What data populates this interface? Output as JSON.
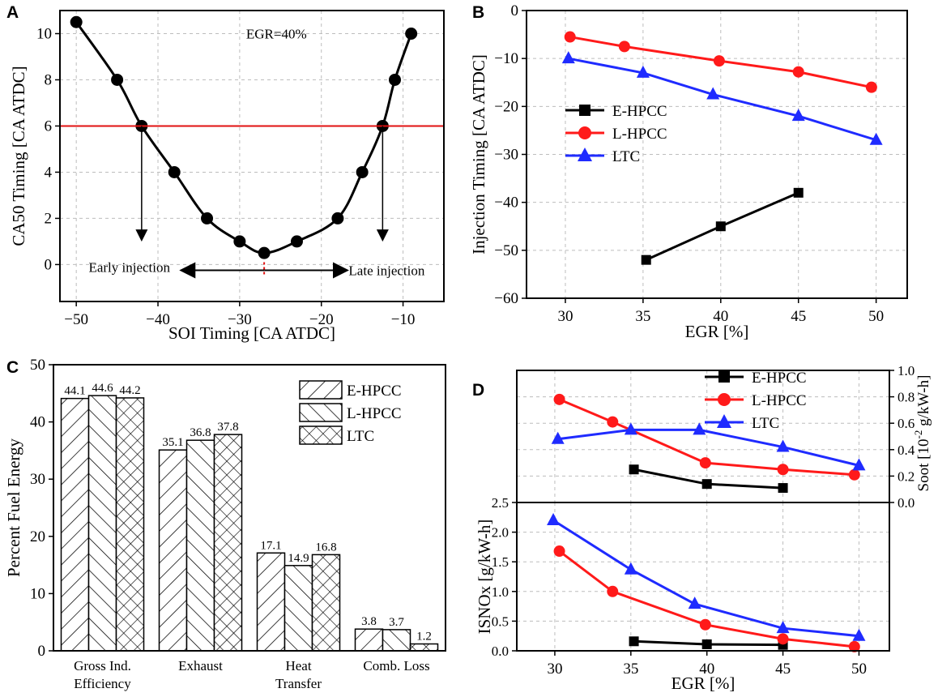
{
  "colors": {
    "black": "#000000",
    "red": "#ff1a1a",
    "blue": "#1f2bff",
    "grid": "#bdbdbd",
    "refline": "#e01010"
  },
  "panels": {
    "a": "A",
    "b": "B",
    "c": "C",
    "d": "D"
  },
  "chart_data": [
    {
      "id": "A",
      "type": "line",
      "title": "",
      "xlabel": "SOI Timing [CA ATDC]",
      "ylabel": "CA50 Timing [CA ATDC]",
      "xlim": [
        -52,
        -5
      ],
      "ylim": [
        -1.6,
        11
      ],
      "xticks": [
        -50,
        -40,
        -30,
        -20,
        -10
      ],
      "yticks": [
        0,
        2,
        4,
        6,
        8,
        10
      ],
      "series": [
        {
          "name": "CA50",
          "x": [
            -50,
            -45,
            -42,
            -38,
            -34,
            -30,
            -27,
            -23,
            -18,
            -15,
            -12.5,
            -11,
            -9
          ],
          "y": [
            10.5,
            8,
            6,
            4,
            2,
            1,
            0.5,
            1,
            2,
            4,
            6,
            8,
            10
          ]
        }
      ],
      "reference_line_y": 6,
      "annotations": {
        "egr": "EGR=40%",
        "early": "Early injection",
        "late": "Late injection"
      }
    },
    {
      "id": "B",
      "type": "line",
      "xlabel": "EGR [%]",
      "ylabel": "Injection Timing [CA ATDC]",
      "xlim": [
        27.5,
        52
      ],
      "ylim": [
        -60,
        0
      ],
      "xticks": [
        30,
        35,
        40,
        45,
        50
      ],
      "yticks": [
        0,
        -10,
        -20,
        -30,
        -40,
        -50,
        -60
      ],
      "legend_position": "center-left",
      "series": [
        {
          "name": "E-HPCC",
          "marker": "square",
          "x": [
            35.2,
            40,
            45
          ],
          "y": [
            -52,
            -45,
            -38
          ]
        },
        {
          "name": "L-HPCC",
          "marker": "circle",
          "x": [
            30.3,
            33.8,
            39.9,
            45,
            49.7
          ],
          "y": [
            -5.5,
            -7.5,
            -10.5,
            -12.8,
            -16
          ]
        },
        {
          "name": "LTC",
          "marker": "triangle",
          "x": [
            30.2,
            35,
            39.5,
            45,
            50
          ],
          "y": [
            -10,
            -13,
            -17.5,
            -22,
            -27
          ]
        }
      ]
    },
    {
      "id": "C",
      "type": "bar",
      "xlabel": "",
      "ylabel": "Percent Fuel Energy",
      "ylim": [
        0,
        50
      ],
      "yticks": [
        0,
        10,
        20,
        30,
        40,
        50
      ],
      "categories": [
        [
          "Gross Ind.",
          "Efficiency"
        ],
        [
          "Exhaust"
        ],
        [
          "Heat",
          "Transfer"
        ],
        [
          "Comb. Loss"
        ]
      ],
      "legend_position": "top-right",
      "series": [
        {
          "name": "E-HPCC",
          "pattern": "forward-hatch",
          "values": [
            44.1,
            35.1,
            17.1,
            3.8
          ],
          "labels": [
            "44.1",
            "35.1",
            "17.1",
            "3.8"
          ]
        },
        {
          "name": "L-HPCC",
          "pattern": "back-hatch",
          "values": [
            44.6,
            36.8,
            14.9,
            3.7
          ],
          "labels": [
            "44.6",
            "36.8",
            "14.9",
            "3.7"
          ]
        },
        {
          "name": "LTC",
          "pattern": "cross-hatch",
          "values": [
            44.2,
            37.8,
            16.8,
            1.2
          ],
          "labels": [
            "44.2",
            "37.8",
            "16.8",
            "1.2"
          ]
        }
      ]
    },
    {
      "id": "D-top",
      "type": "line",
      "xlabel": "",
      "ylabel": "Soot [10^-2 g/kW-h]",
      "ylabel_parts": [
        "Soot [10",
        "-2",
        " g/kW-h]"
      ],
      "xlim": [
        27.5,
        52
      ],
      "ylim": [
        0,
        1.0
      ],
      "yticks": [
        0.0,
        0.2,
        0.4,
        0.6,
        0.8,
        1.0
      ],
      "yticklabels": [
        "0.0",
        "0.2",
        "0.4",
        "0.6",
        "0.8",
        "1.0"
      ],
      "legend_position": "top-right",
      "series": [
        {
          "name": "E-HPCC",
          "marker": "square",
          "x": [
            35.2,
            40,
            45
          ],
          "y": [
            0.25,
            0.14,
            0.11
          ]
        },
        {
          "name": "L-HPCC",
          "marker": "circle",
          "x": [
            30.3,
            33.8,
            39.9,
            45,
            49.7
          ],
          "y": [
            0.78,
            0.61,
            0.3,
            0.25,
            0.21
          ]
        },
        {
          "name": "LTC",
          "marker": "triangle",
          "x": [
            30.2,
            35,
            39.5,
            45,
            50
          ],
          "y": [
            0.48,
            0.55,
            0.55,
            0.42,
            0.28
          ]
        }
      ]
    },
    {
      "id": "D-bottom",
      "type": "line",
      "xlabel": "EGR [%]",
      "ylabel": "ISNOx [g/kW-h]",
      "xlim": [
        27.5,
        52
      ],
      "ylim": [
        0,
        2.5
      ],
      "xticks": [
        30,
        35,
        40,
        45,
        50
      ],
      "yticks": [
        0.0,
        0.5,
        1.0,
        1.5,
        2.0,
        2.5
      ],
      "yticklabels": [
        "0.0",
        "0.5",
        "1.0",
        "1.5",
        "2.0",
        "2.5"
      ],
      "series": [
        {
          "name": "E-HPCC",
          "marker": "square",
          "x": [
            35.2,
            40,
            45
          ],
          "y": [
            0.16,
            0.11,
            0.1
          ]
        },
        {
          "name": "L-HPCC",
          "marker": "circle",
          "x": [
            30.3,
            33.8,
            39.9,
            45,
            49.7
          ],
          "y": [
            1.68,
            1.0,
            0.44,
            0.2,
            0.07
          ]
        },
        {
          "name": "LTC",
          "marker": "triangle",
          "x": [
            29.9,
            35,
            39.2,
            45,
            50
          ],
          "y": [
            2.2,
            1.37,
            0.79,
            0.38,
            0.25
          ]
        }
      ]
    }
  ]
}
